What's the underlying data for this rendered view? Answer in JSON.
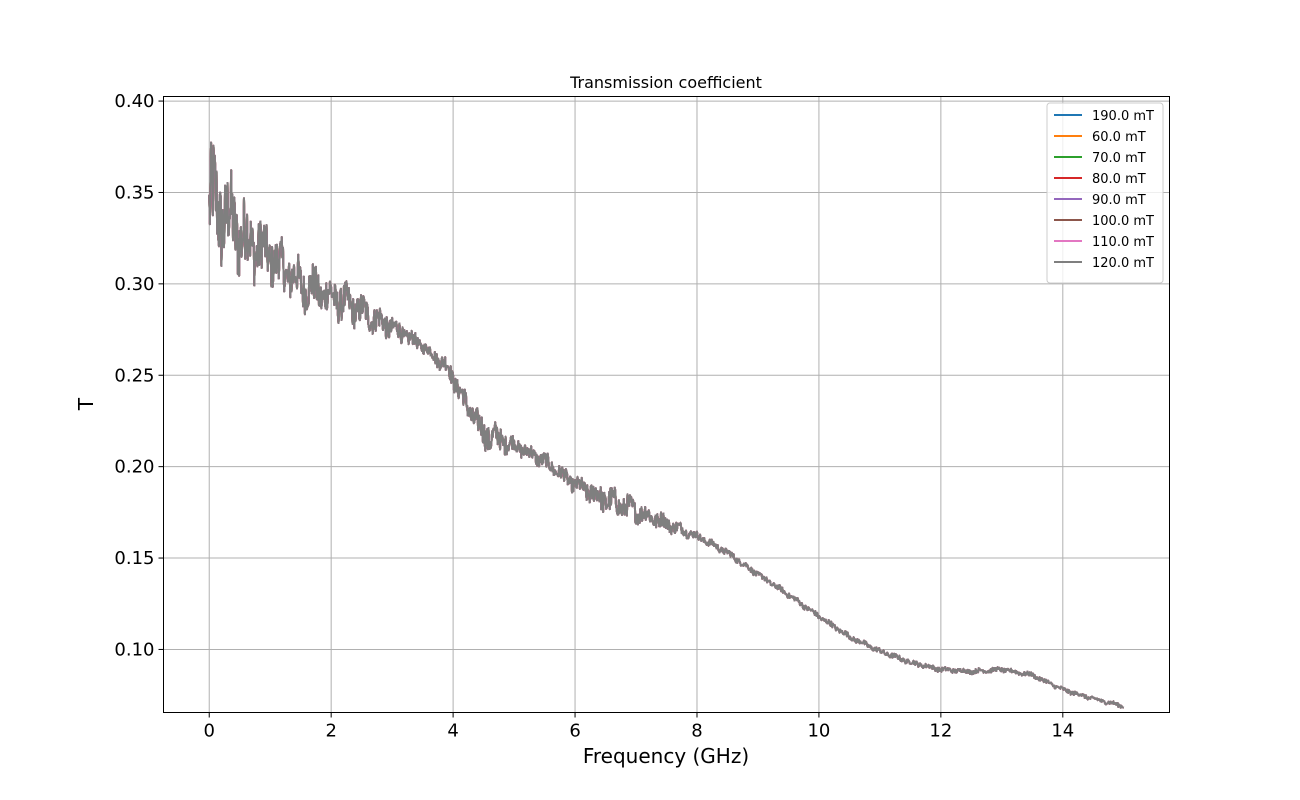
{
  "chart_data": {
    "type": "line",
    "title": "Transmission coefficient",
    "xlabel": "Frequency (GHz)",
    "ylabel": "T",
    "xlim": [
      -0.75,
      15.75
    ],
    "ylim": [
      0.0655,
      0.4025
    ],
    "xticks": [
      0,
      2,
      4,
      6,
      8,
      10,
      12,
      14
    ],
    "xtick_labels": [
      "0",
      "2",
      "4",
      "6",
      "8",
      "10",
      "12",
      "14"
    ],
    "yticks": [
      0.1,
      0.15,
      0.2,
      0.25,
      0.3,
      0.35,
      0.4
    ],
    "ytick_labels": [
      "0.10",
      "0.15",
      "0.20",
      "0.25",
      "0.30",
      "0.35",
      "0.40"
    ],
    "grid": true,
    "legend_position": "top-right",
    "series": [
      {
        "name": "190.0 mT",
        "color": "#1f77b4"
      },
      {
        "name": "60.0 mT",
        "color": "#ff7f0e"
      },
      {
        "name": "70.0 mT",
        "color": "#2ca02c"
      },
      {
        "name": "80.0 mT",
        "color": "#d62728"
      },
      {
        "name": "90.0 mT",
        "color": "#9467bd"
      },
      {
        "name": "100.0 mT",
        "color": "#8c564b"
      },
      {
        "name": "110.0 mT",
        "color": "#e377c2"
      },
      {
        "name": "120.0 mT",
        "color": "#7f7f7f"
      }
    ],
    "trend": {
      "x": [
        0,
        0.05,
        0.3,
        0.6,
        1.0,
        1.5,
        2.0,
        2.5,
        3.0,
        3.5,
        3.9,
        4.2,
        4.5,
        5.0,
        5.5,
        6.0,
        6.5,
        7.0,
        7.5,
        8.0,
        8.5,
        9.0,
        9.5,
        10.0,
        10.5,
        11.0,
        11.5,
        12.0,
        12.5,
        13.0,
        13.5,
        14.0,
        14.5,
        15.0
      ],
      "y": [
        0.34,
        0.345,
        0.335,
        0.325,
        0.315,
        0.3,
        0.293,
        0.285,
        0.276,
        0.266,
        0.255,
        0.235,
        0.218,
        0.212,
        0.203,
        0.19,
        0.182,
        0.176,
        0.169,
        0.162,
        0.153,
        0.141,
        0.13,
        0.118,
        0.107,
        0.099,
        0.093,
        0.089,
        0.088,
        0.089,
        0.086,
        0.078,
        0.073,
        0.069
      ],
      "noise_amplitude": {
        "x": [
          0,
          0.5,
          1.0,
          2.0,
          3.0,
          3.5,
          4.0,
          4.6,
          5.0,
          6.0,
          6.5,
          7.2,
          8.0,
          9.0,
          12.0,
          15.0
        ],
        "y": [
          0.028,
          0.02,
          0.013,
          0.01,
          0.006,
          0.003,
          0.005,
          0.008,
          0.004,
          0.004,
          0.007,
          0.005,
          0.002,
          0.0015,
          0.0012,
          0.001
        ]
      }
    }
  }
}
